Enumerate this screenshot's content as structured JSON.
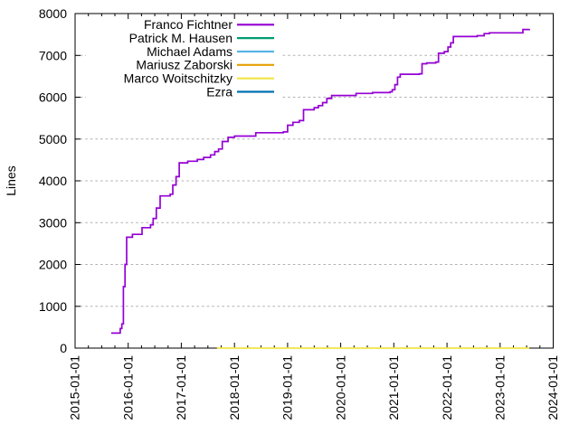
{
  "chart_data": {
    "type": "line",
    "title": "",
    "xlabel": "",
    "ylabel": "Lines",
    "x_axis": {
      "range": [
        "2015-01-01",
        "2024-01-01"
      ],
      "tick_labels": [
        "2015-01-01",
        "2016-01-01",
        "2017-01-01",
        "2018-01-01",
        "2019-01-01",
        "2020-01-01",
        "2021-01-01",
        "2022-01-01",
        "2023-01-01",
        "2024-01-01"
      ],
      "minor_divisions_per_year": 4,
      "labels_rotated_degrees": 90
    },
    "y_axis": {
      "min": 0,
      "max": 8000,
      "tick_step": 1000,
      "tick_labels": [
        "0",
        "1000",
        "2000",
        "3000",
        "4000",
        "5000",
        "6000",
        "7000",
        "8000"
      ],
      "grid": "horizontal-dashed"
    },
    "legend_position": "top-left-inside",
    "series": [
      {
        "name": "Franco Fichtner",
        "color": "#9400d3",
        "points": [
          [
            2015.68,
            360
          ],
          [
            2015.85,
            470
          ],
          [
            2015.88,
            580
          ],
          [
            2015.91,
            1470
          ],
          [
            2015.94,
            2000
          ],
          [
            2015.97,
            2650
          ],
          [
            2016.08,
            2720
          ],
          [
            2016.26,
            2880
          ],
          [
            2016.42,
            2950
          ],
          [
            2016.47,
            3100
          ],
          [
            2016.53,
            3350
          ],
          [
            2016.6,
            3640
          ],
          [
            2016.79,
            3680
          ],
          [
            2016.84,
            3900
          ],
          [
            2016.9,
            4100
          ],
          [
            2016.96,
            4430
          ],
          [
            2017.12,
            4470
          ],
          [
            2017.3,
            4510
          ],
          [
            2017.42,
            4560
          ],
          [
            2017.55,
            4620
          ],
          [
            2017.63,
            4700
          ],
          [
            2017.7,
            4760
          ],
          [
            2017.77,
            4940
          ],
          [
            2017.88,
            5040
          ],
          [
            2018.0,
            5070
          ],
          [
            2018.4,
            5150
          ],
          [
            2018.92,
            5170
          ],
          [
            2019.0,
            5330
          ],
          [
            2019.1,
            5400
          ],
          [
            2019.22,
            5440
          ],
          [
            2019.3,
            5700
          ],
          [
            2019.5,
            5750
          ],
          [
            2019.58,
            5800
          ],
          [
            2019.66,
            5870
          ],
          [
            2019.74,
            5970
          ],
          [
            2019.83,
            6040
          ],
          [
            2020.29,
            6090
          ],
          [
            2020.6,
            6110
          ],
          [
            2020.93,
            6130
          ],
          [
            2020.97,
            6180
          ],
          [
            2021.02,
            6300
          ],
          [
            2021.07,
            6480
          ],
          [
            2021.12,
            6550
          ],
          [
            2021.48,
            6560
          ],
          [
            2021.53,
            6800
          ],
          [
            2021.62,
            6820
          ],
          [
            2021.79,
            6840
          ],
          [
            2021.84,
            7050
          ],
          [
            2021.95,
            7090
          ],
          [
            2022.02,
            7200
          ],
          [
            2022.07,
            7300
          ],
          [
            2022.12,
            7450
          ],
          [
            2022.57,
            7470
          ],
          [
            2022.7,
            7520
          ],
          [
            2022.8,
            7540
          ],
          [
            2023.43,
            7620
          ],
          [
            2023.55,
            7630
          ]
        ]
      },
      {
        "name": "Patrick M. Hausen",
        "color": "#009e73",
        "points": []
      },
      {
        "name": "Michael Adams",
        "color": "#56b4e9",
        "points": []
      },
      {
        "name": "Mariusz Zaborski",
        "color": "#e69f00",
        "points": []
      },
      {
        "name": "Marco Woitschitzky",
        "color": "#f0e442",
        "points": [
          [
            2017.67,
            0
          ],
          [
            2023.55,
            0
          ]
        ]
      },
      {
        "name": "Ezra",
        "color": "#0072b2",
        "points": []
      }
    ]
  },
  "colors": {
    "background": "#ffffff",
    "axis": "#000000",
    "grid": "#b0b0b0",
    "text": "#000000"
  }
}
